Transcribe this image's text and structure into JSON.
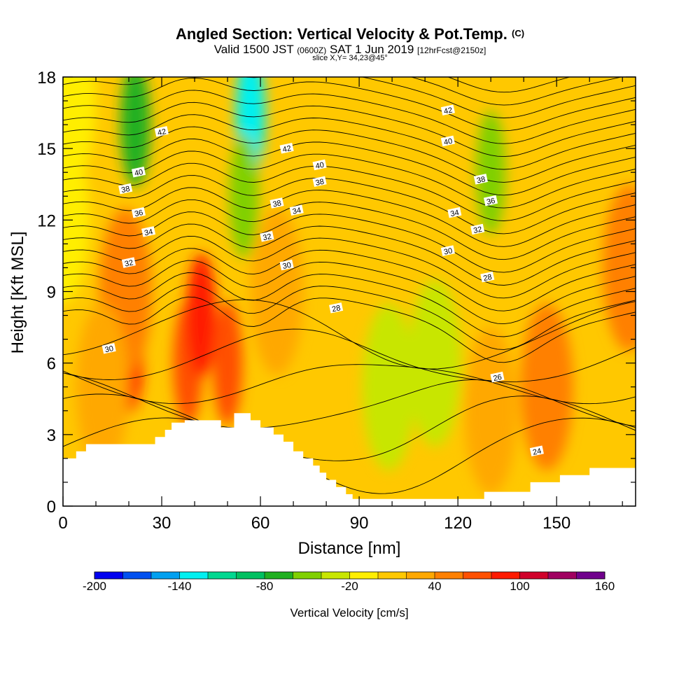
{
  "title": {
    "main": "Angled Section: Vertical Velocity & Pot.Temp.",
    "main_suffix": "(C)",
    "valid_prefix": "Valid 1500 JST",
    "valid_utc": "(0600Z)",
    "valid_date": "SAT 1 Jun 2019",
    "forecast": "[12hrFcst@2150z]",
    "slice": "slice X,Y= 34,23@45°"
  },
  "chart_data": {
    "type": "heatmap",
    "xlabel": "Distance [nm]",
    "ylabel": "Height [Kft MSL]",
    "xlim": [
      0,
      174
    ],
    "ylim": [
      0,
      18
    ],
    "x_ticks": [
      0,
      30,
      60,
      90,
      120,
      150
    ],
    "y_ticks": [
      0,
      3,
      6,
      9,
      12,
      15,
      18
    ],
    "colorbar": {
      "title": "Vertical Velocity [cm/s]",
      "min": -200,
      "max": 160,
      "step": 20,
      "tick_labels": [
        -200,
        -140,
        -80,
        -20,
        40,
        100,
        160
      ],
      "colors": [
        "#0000f0",
        "#0050f0",
        "#00a0f0",
        "#00f0f0",
        "#00d890",
        "#00c060",
        "#20b020",
        "#80d000",
        "#c8e600",
        "#ffee00",
        "#ffc800",
        "#ffa800",
        "#ff8000",
        "#ff5000",
        "#ff1a00",
        "#d0002a",
        "#a00060",
        "#70008c"
      ]
    },
    "terrain_kft": [
      [
        0,
        2.0
      ],
      [
        4,
        2.0
      ],
      [
        4,
        2.3
      ],
      [
        7,
        2.3
      ],
      [
        7,
        2.6
      ],
      [
        28,
        2.6
      ],
      [
        28,
        2.9
      ],
      [
        31,
        2.9
      ],
      [
        31,
        3.2
      ],
      [
        33,
        3.2
      ],
      [
        33,
        3.5
      ],
      [
        37,
        3.5
      ],
      [
        37,
        3.6
      ],
      [
        48,
        3.6
      ],
      [
        48,
        3.3
      ],
      [
        52,
        3.3
      ],
      [
        52,
        3.9
      ],
      [
        57,
        3.9
      ],
      [
        57,
        3.6
      ],
      [
        60,
        3.6
      ],
      [
        60,
        3.3
      ],
      [
        64,
        3.3
      ],
      [
        64,
        3.0
      ],
      [
        67,
        3.0
      ],
      [
        67,
        2.7
      ],
      [
        70,
        2.7
      ],
      [
        70,
        2.3
      ],
      [
        73,
        2.3
      ],
      [
        73,
        2.0
      ],
      [
        76,
        2.0
      ],
      [
        76,
        1.7
      ],
      [
        78,
        1.7
      ],
      [
        78,
        1.4
      ],
      [
        80,
        1.4
      ],
      [
        80,
        1.1
      ],
      [
        83,
        1.1
      ],
      [
        83,
        0.8
      ],
      [
        86,
        0.8
      ],
      [
        86,
        0.5
      ],
      [
        88,
        0.5
      ],
      [
        88,
        0.3
      ],
      [
        128,
        0.3
      ],
      [
        128,
        0.6
      ],
      [
        142,
        0.6
      ],
      [
        142,
        1.0
      ],
      [
        151,
        1.0
      ],
      [
        151,
        1.3
      ],
      [
        160,
        1.3
      ],
      [
        160,
        1.6
      ],
      [
        174,
        1.6
      ]
    ],
    "velocity_field": [
      {
        "x": 0,
        "y": 12,
        "value": -20
      },
      {
        "x": 2,
        "y": 17,
        "value": -20
      },
      {
        "x": 20,
        "y": 6.5,
        "value": 90
      },
      {
        "x": 19,
        "y": 9,
        "value": 50
      },
      {
        "x": 12,
        "y": 5,
        "value": 30
      },
      {
        "x": 38,
        "y": 6,
        "value": 60
      },
      {
        "x": 42,
        "y": 8,
        "value": 80
      },
      {
        "x": 50,
        "y": 6,
        "value": 70
      },
      {
        "x": 65,
        "y": 9,
        "value": 20
      },
      {
        "x": 22,
        "y": 16,
        "value": -80
      },
      {
        "x": 57,
        "y": 16.5,
        "value": -140
      },
      {
        "x": 55,
        "y": 13,
        "value": -60
      },
      {
        "x": 130,
        "y": 14,
        "value": -60
      },
      {
        "x": 113,
        "y": 6,
        "value": -30
      },
      {
        "x": 99,
        "y": 5,
        "value": -30
      },
      {
        "x": 130,
        "y": 4,
        "value": 30
      },
      {
        "x": 147,
        "y": 5,
        "value": 40
      },
      {
        "x": 172,
        "y": 10,
        "value": 40
      }
    ],
    "contour_labels": [
      {
        "x": 30,
        "y": 15.7,
        "text": "42"
      },
      {
        "x": 23,
        "y": 14.0,
        "text": "40"
      },
      {
        "x": 19,
        "y": 13.3,
        "text": "38"
      },
      {
        "x": 23,
        "y": 12.3,
        "text": "36"
      },
      {
        "x": 26,
        "y": 11.5,
        "text": "34"
      },
      {
        "x": 20,
        "y": 10.2,
        "text": "32"
      },
      {
        "x": 14,
        "y": 6.6,
        "text": "30"
      },
      {
        "x": 68,
        "y": 15.0,
        "text": "42"
      },
      {
        "x": 78,
        "y": 14.3,
        "text": "40"
      },
      {
        "x": 78,
        "y": 13.6,
        "text": "38"
      },
      {
        "x": 65,
        "y": 12.7,
        "text": "38"
      },
      {
        "x": 71,
        "y": 12.4,
        "text": "34"
      },
      {
        "x": 62,
        "y": 11.3,
        "text": "32"
      },
      {
        "x": 68,
        "y": 10.1,
        "text": "30"
      },
      {
        "x": 83,
        "y": 8.3,
        "text": "28"
      },
      {
        "x": 117,
        "y": 16.6,
        "text": "42"
      },
      {
        "x": 117,
        "y": 15.3,
        "text": "40"
      },
      {
        "x": 127,
        "y": 13.7,
        "text": "38"
      },
      {
        "x": 130,
        "y": 12.8,
        "text": "36"
      },
      {
        "x": 119,
        "y": 12.3,
        "text": "34"
      },
      {
        "x": 126,
        "y": 11.6,
        "text": "32"
      },
      {
        "x": 117,
        "y": 10.7,
        "text": "30"
      },
      {
        "x": 129,
        "y": 9.6,
        "text": "28"
      },
      {
        "x": 132,
        "y": 5.4,
        "text": "26"
      },
      {
        "x": 144,
        "y": 2.3,
        "text": "24"
      }
    ]
  }
}
